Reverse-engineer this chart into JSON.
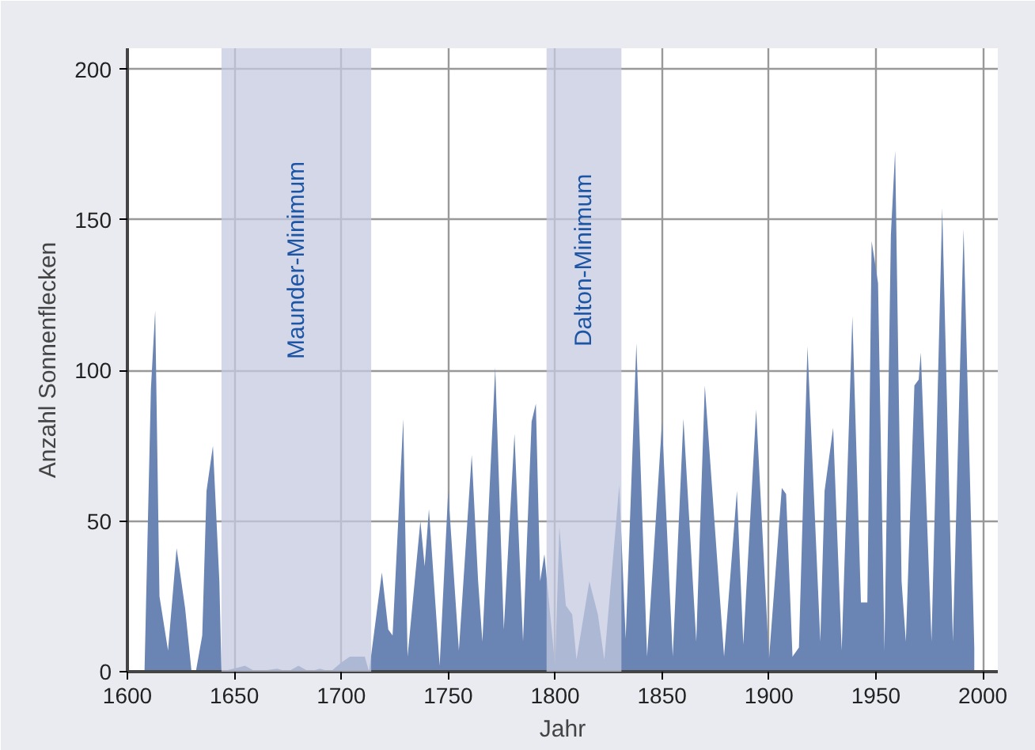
{
  "chart_data": {
    "type": "area",
    "xlabel": "Jahr",
    "ylabel": "Anzahl Sonnenflecken",
    "x": [
      1608,
      1611,
      1613,
      1615,
      1619,
      1623,
      1627,
      1630,
      1632,
      1635,
      1637,
      1640,
      1643,
      1644,
      1655,
      1660,
      1670,
      1675,
      1680,
      1685,
      1690,
      1695,
      1700,
      1704,
      1711,
      1713,
      1719,
      1722,
      1724,
      1729,
      1731,
      1737,
      1739,
      1741,
      1746,
      1750,
      1755,
      1761,
      1764,
      1766,
      1772,
      1776,
      1781,
      1785,
      1789,
      1791,
      1793,
      1795,
      1800,
      1802,
      1805,
      1808,
      1810,
      1816,
      1820,
      1823,
      1830,
      1833,
      1838,
      1843,
      1850,
      1855,
      1860,
      1866,
      1870,
      1879,
      1885,
      1888,
      1894,
      1900,
      1906,
      1908,
      1911,
      1914,
      1918,
      1924,
      1926,
      1930,
      1934,
      1939,
      1943,
      1946,
      1948,
      1951,
      1954,
      1957,
      1959,
      1962,
      1964,
      1968,
      1970,
      1971,
      1976,
      1981,
      1986,
      1991,
      1996
    ],
    "values": [
      0,
      94,
      120,
      25,
      7,
      41,
      21,
      0,
      0,
      12,
      60,
      75,
      30,
      0,
      2,
      0,
      1,
      0,
      2,
      0,
      1,
      0,
      3,
      5,
      5,
      0,
      33,
      14,
      12,
      84,
      5,
      50,
      35,
      54,
      2,
      60,
      7,
      72,
      30,
      10,
      101,
      14,
      79,
      10,
      83,
      89,
      30,
      39,
      2,
      48,
      22,
      19,
      4,
      30,
      19,
      4,
      62,
      11,
      109,
      5,
      83,
      5,
      84,
      10,
      95,
      5,
      60,
      9,
      87,
      4,
      61,
      59,
      5,
      8,
      108,
      10,
      60,
      81,
      7,
      118,
      23,
      23,
      143,
      129,
      7,
      145,
      173,
      30,
      10,
      95,
      97,
      106,
      10,
      154,
      10,
      147,
      8
    ],
    "color": "#6a84b4",
    "xlim": [
      1600,
      2007
    ],
    "ylim": [
      0,
      207
    ],
    "xticks": [
      1600,
      1650,
      1700,
      1750,
      1800,
      1850,
      1900,
      1950,
      2000
    ],
    "yticks": [
      0,
      50,
      100,
      150,
      200
    ],
    "grid": true,
    "bands": [
      {
        "axis": "x",
        "from": 1644,
        "to": 1714,
        "label": "Maunder-Minimum",
        "color": "#c4c9e0"
      },
      {
        "axis": "x",
        "from": 1796,
        "to": 1831,
        "label": "Dalton-Minimum",
        "color": "#c4c9e0"
      }
    ]
  }
}
